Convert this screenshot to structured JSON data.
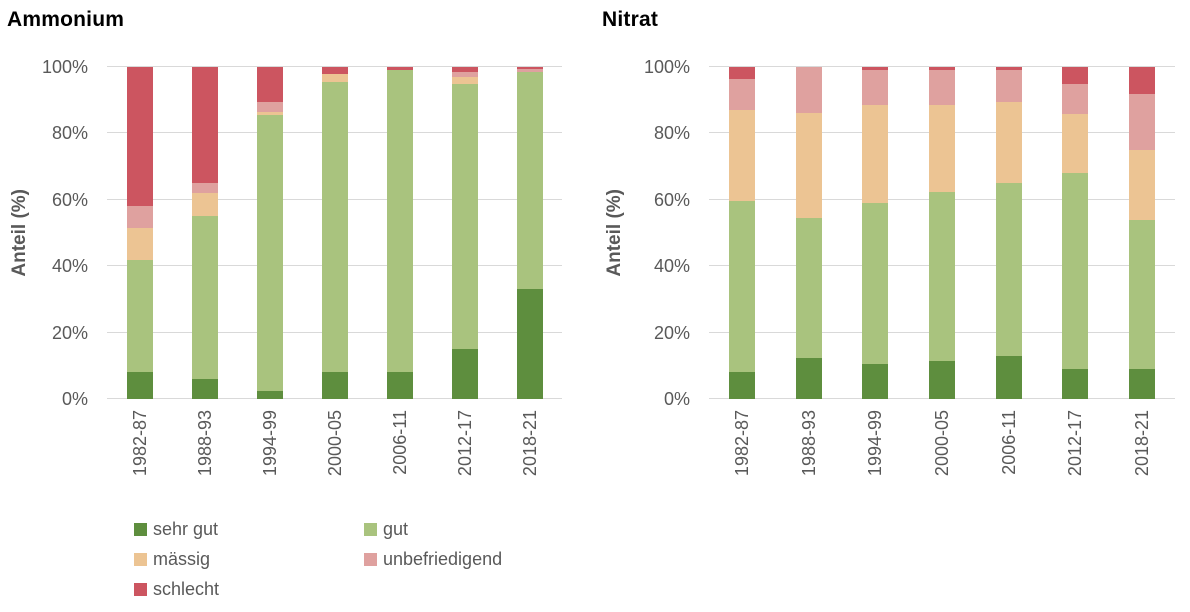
{
  "chart_data": [
    {
      "type": "bar",
      "stacked": true,
      "title": "Ammonium",
      "ylabel": "Anteil (%)",
      "ylim": [
        0,
        100
      ],
      "yticks": [
        "0%",
        "20%",
        "40%",
        "60%",
        "80%",
        "100%"
      ],
      "grid": true,
      "categories": [
        "1982-87",
        "1988-93",
        "1994-99",
        "2000-05",
        "2006-11",
        "2012-17",
        "2018-21"
      ],
      "series": [
        {
          "name": "sehr gut",
          "color": "#5e8e3e",
          "values": [
            8,
            6,
            2.5,
            8,
            8,
            15,
            33
          ]
        },
        {
          "name": "gut",
          "color": "#a9c37e",
          "values": [
            34,
            49,
            83,
            87.5,
            91,
            80,
            65.5
          ]
        },
        {
          "name": "mässig",
          "color": "#ecc493",
          "values": [
            9.5,
            7,
            1,
            2.5,
            0,
            2,
            0
          ]
        },
        {
          "name": "unbefriedigend",
          "color": "#dfa19f",
          "values": [
            6.5,
            3,
            3,
            0,
            0,
            1.5,
            1
          ]
        },
        {
          "name": "schlecht",
          "color": "#cc5560",
          "values": [
            42,
            35,
            10.5,
            2,
            1,
            1.5,
            0.5
          ]
        }
      ]
    },
    {
      "type": "bar",
      "stacked": true,
      "title": "Nitrat",
      "ylabel": "Anteil (%)",
      "ylim": [
        0,
        100
      ],
      "yticks": [
        "0%",
        "20%",
        "40%",
        "60%",
        "80%",
        "100%"
      ],
      "grid": true,
      "categories": [
        "1982-87",
        "1988-93",
        "1994-99",
        "2000-05",
        "2006-11",
        "2012-17",
        "2018-21"
      ],
      "series": [
        {
          "name": "sehr gut",
          "color": "#5e8e3e",
          "values": [
            8,
            12.5,
            10.5,
            11.5,
            13,
            9,
            9
          ]
        },
        {
          "name": "gut",
          "color": "#a9c37e",
          "values": [
            51.5,
            42,
            48.5,
            51,
            52,
            59,
            45
          ]
        },
        {
          "name": "mässig",
          "color": "#ecc493",
          "values": [
            27.5,
            31.5,
            29.5,
            26,
            24.5,
            18,
            21
          ]
        },
        {
          "name": "unbefriedigend",
          "color": "#dfa19f",
          "values": [
            9.5,
            14,
            10.5,
            10.5,
            9.5,
            9,
            17
          ]
        },
        {
          "name": "schlecht",
          "color": "#cc5560",
          "values": [
            3.5,
            0,
            1,
            1,
            1,
            5,
            8
          ]
        }
      ]
    }
  ],
  "legend": {
    "items": [
      {
        "label": "sehr gut",
        "color": "#5e8e3e"
      },
      {
        "label": "gut",
        "color": "#a9c37e"
      },
      {
        "label": "mässig",
        "color": "#ecc493"
      },
      {
        "label": "unbefriedigend",
        "color": "#dfa19f"
      },
      {
        "label": "schlecht",
        "color": "#cc5560"
      }
    ]
  },
  "colors": {
    "grid": "#d9d9d9",
    "axis_text": "#595959",
    "title_text": "#000000"
  }
}
